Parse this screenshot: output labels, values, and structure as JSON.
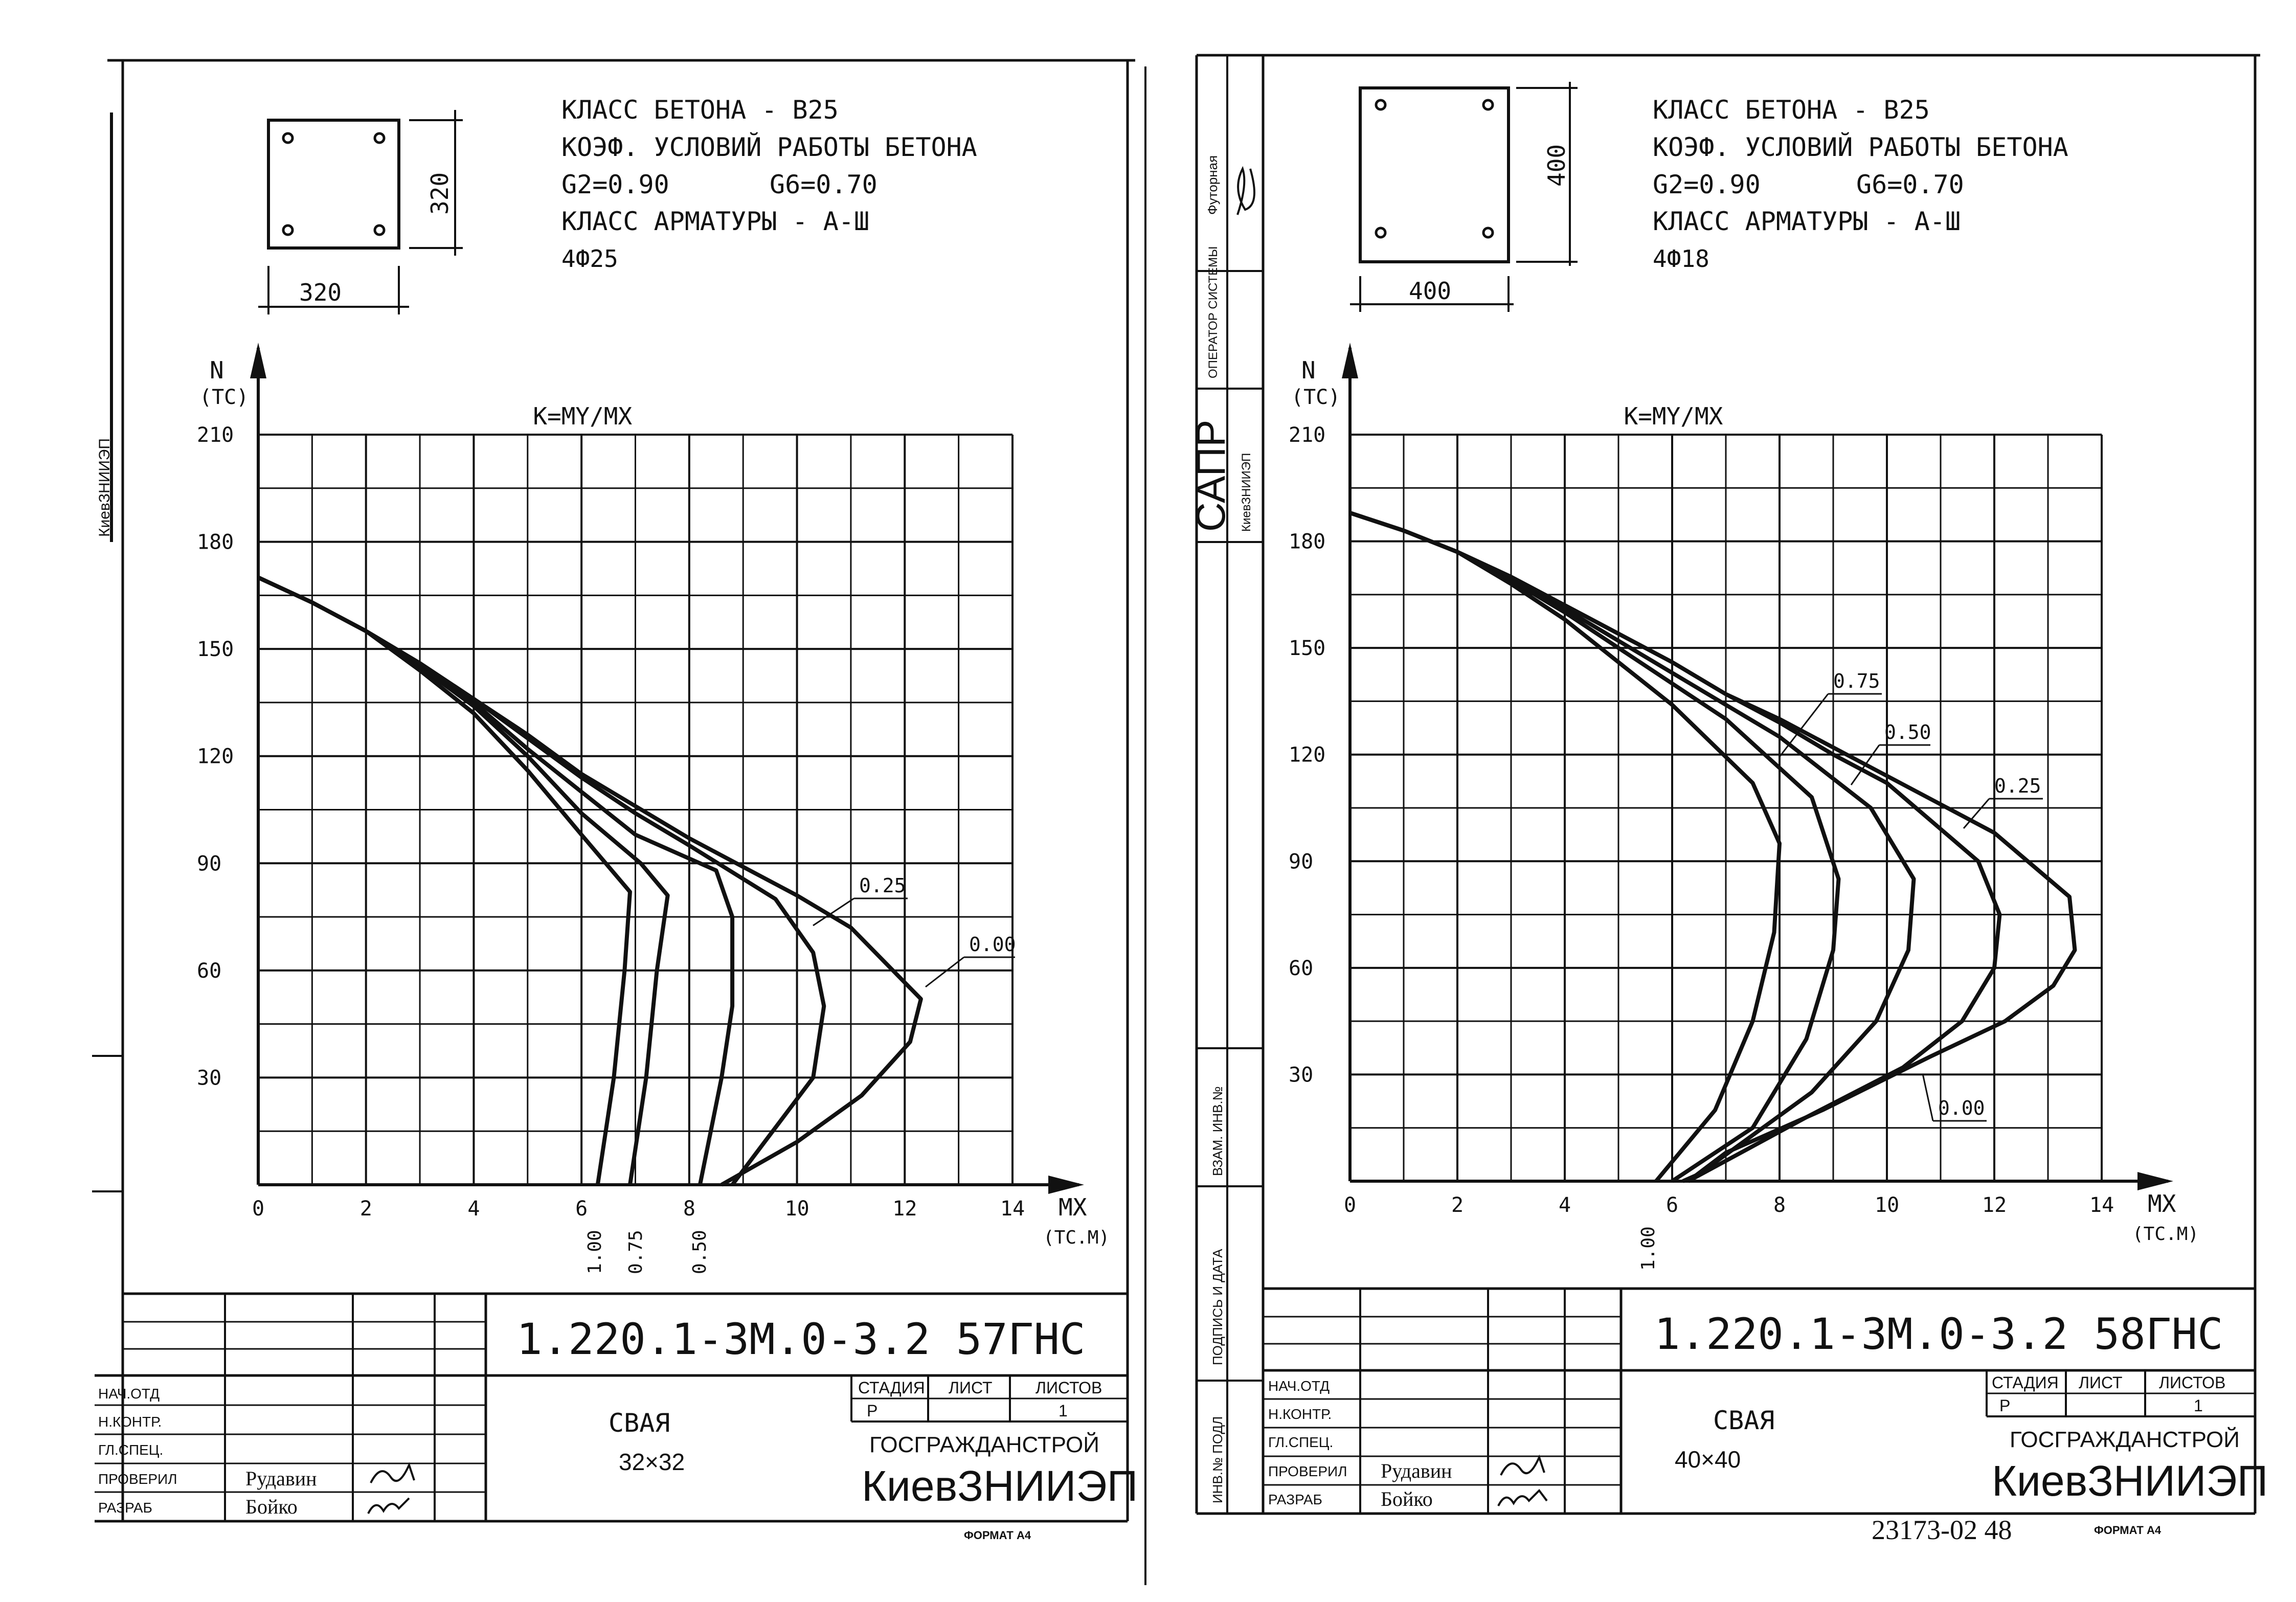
{
  "sheets": [
    {
      "specs": {
        "line1": "КЛАСС БЕТОНА - В25",
        "line2": "КОЭФ. УСЛОВИЙ РАБОТЫ БЕТОНА",
        "line3a": "G2=0.90",
        "line3b": "G6=0.70",
        "line4": "КЛАСС АРМАТУРЫ - А-Ш",
        "line5": "4Ф25"
      },
      "section_dim_w": "320",
      "section_dim_h": "320",
      "y_axis_label": "N",
      "y_axis_unit": "(ТС)",
      "x_axis_label": "MX",
      "x_axis_unit": "(ТС.М)",
      "k_label": "K=MY/MX",
      "y_ticks": [
        "210",
        "180",
        "150",
        "120",
        "90",
        "60",
        "30"
      ],
      "x_ticks": [
        "0",
        "2",
        "4",
        "6",
        "8",
        "10",
        "12",
        "14"
      ],
      "curve_labels": [
        "0.25",
        "0.00"
      ],
      "bottom_labels": [
        "1.00",
        "0.75",
        "0.50"
      ],
      "drawing_number": "1.220.1-3М.0-3.2 57ГНС",
      "item_name": "СВАЯ",
      "item_size": "32×32",
      "org1": "ГОСГРАЖДАНСТРОЙ",
      "org2": "КиевЗНИИЭП",
      "stage_headers": [
        "СТАДИЯ",
        "ЛИСТ",
        "ЛИСТОВ"
      ],
      "stage_values": [
        "Р",
        "",
        "1"
      ],
      "roles": [
        "НАЧ.ОТД",
        "Н.КОНТР.",
        "ГЛ.СПЕЦ.",
        "ПРОВЕРИЛ",
        "РАЗРАБ"
      ],
      "names": [
        "",
        "",
        "",
        "Рудавин",
        "Бойко"
      ],
      "format": "ФОРМАТ А4",
      "chart_data": {
        "type": "line",
        "xlabel": "MX (ТС.М)",
        "ylabel": "N (ТС)",
        "xlim": [
          0,
          14
        ],
        "ylim": [
          0,
          210
        ],
        "grid": true,
        "series": [
          {
            "name": "1.00",
            "points": [
              [
                0,
                170
              ],
              [
                1,
                163
              ],
              [
                2,
                155
              ],
              [
                3,
                144
              ],
              [
                4,
                132
              ],
              [
                5,
                116
              ],
              [
                6,
                98
              ],
              [
                6.9,
                82
              ],
              [
                6.8,
                60
              ],
              [
                6.6,
                30
              ],
              [
                6.3,
                0
              ]
            ]
          },
          {
            "name": "0.75",
            "points": [
              [
                0,
                170
              ],
              [
                1,
                163
              ],
              [
                2,
                155
              ],
              [
                3,
                145
              ],
              [
                4,
                134
              ],
              [
                5,
                120
              ],
              [
                6,
                104
              ],
              [
                7.1,
                90
              ],
              [
                7.6,
                81
              ],
              [
                7.4,
                60
              ],
              [
                7.2,
                30
              ],
              [
                6.9,
                0
              ]
            ]
          },
          {
            "name": "0.50",
            "points": [
              [
                0,
                170
              ],
              [
                1,
                163
              ],
              [
                2,
                155
              ],
              [
                3,
                145
              ],
              [
                4,
                135
              ],
              [
                5,
                122
              ],
              [
                6,
                110
              ],
              [
                7,
                98
              ],
              [
                8.5,
                88
              ],
              [
                8.8,
                75
              ],
              [
                8.8,
                50
              ],
              [
                8.6,
                30
              ],
              [
                8.2,
                0
              ]
            ]
          },
          {
            "name": "0.25",
            "points": [
              [
                0,
                170
              ],
              [
                1,
                163
              ],
              [
                2,
                155
              ],
              [
                3,
                146
              ],
              [
                4,
                136
              ],
              [
                5,
                125
              ],
              [
                6,
                114
              ],
              [
                7,
                104
              ],
              [
                8,
                95
              ],
              [
                9.6,
                80
              ],
              [
                10.3,
                65
              ],
              [
                10.5,
                50
              ],
              [
                10.3,
                30
              ],
              [
                9.5,
                14
              ],
              [
                8.8,
                0
              ]
            ]
          },
          {
            "name": "0.00",
            "points": [
              [
                0,
                170
              ],
              [
                1,
                163
              ],
              [
                2,
                155
              ],
              [
                3,
                146
              ],
              [
                4,
                136
              ],
              [
                5,
                126
              ],
              [
                6,
                115
              ],
              [
                7,
                106
              ],
              [
                8,
                97
              ],
              [
                9,
                89
              ],
              [
                10,
                81
              ],
              [
                11,
                72
              ],
              [
                12.3,
                52
              ],
              [
                12.1,
                40
              ],
              [
                11.2,
                25
              ],
              [
                10.0,
                12
              ],
              [
                8.6,
                0
              ]
            ]
          }
        ]
      }
    },
    {
      "specs": {
        "line1": "КЛАСС БЕТОНА - В25",
        "line2": "КОЭФ. УСЛОВИЙ РАБОТЫ БЕТОНА",
        "line3a": "G2=0.90",
        "line3b": "G6=0.70",
        "line4": "КЛАСС АРМАТУРЫ - А-Ш",
        "line5": "4Ф18"
      },
      "section_dim_w": "400",
      "section_dim_h": "400",
      "y_axis_label": "N",
      "y_axis_unit": "(ТС)",
      "x_axis_label": "MX",
      "x_axis_unit": "(ТС.М)",
      "k_label": "K=MY/MX",
      "y_ticks": [
        "210",
        "180",
        "150",
        "120",
        "90",
        "60",
        "30"
      ],
      "x_ticks": [
        "0",
        "2",
        "4",
        "6",
        "8",
        "10",
        "12",
        "14"
      ],
      "curve_labels": [
        "0.75",
        "0.50",
        "0.25",
        "0.00"
      ],
      "bottom_labels": [
        "1.00"
      ],
      "drawing_number": "1.220.1-3М.0-3.2 58ГНС",
      "item_name": "СВАЯ",
      "item_size": "40×40",
      "org1": "ГОСГРАЖДАНСТРОЙ",
      "org2": "КиевЗНИИЭП",
      "stage_headers": [
        "СТАДИЯ",
        "ЛИСТ",
        "ЛИСТОВ"
      ],
      "stage_values": [
        "Р",
        "",
        "1"
      ],
      "roles": [
        "НАЧ.ОТД",
        "Н.КОНТР.",
        "ГЛ.СПЕЦ.",
        "ПРОВЕРИЛ",
        "РАЗРАБ"
      ],
      "names": [
        "",
        "",
        "",
        "Рудавин",
        "Бойко"
      ],
      "format": "ФОРМАТ А4",
      "archive_number": "23173-02 48",
      "chart_data": {
        "type": "line",
        "xlabel": "MX (ТС.М)",
        "ylabel": "N (ТС)",
        "xlim": [
          0,
          14
        ],
        "ylim": [
          0,
          210
        ],
        "grid": true,
        "series": [
          {
            "name": "1.00",
            "points": [
              [
                0,
                188
              ],
              [
                1,
                183
              ],
              [
                2,
                177
              ],
              [
                3,
                168
              ],
              [
                4,
                158
              ],
              [
                5,
                146
              ],
              [
                6,
                134
              ],
              [
                7.5,
                112
              ],
              [
                8,
                95
              ],
              [
                7.9,
                70
              ],
              [
                7.5,
                45
              ],
              [
                6.8,
                20
              ],
              [
                5.7,
                0
              ]
            ]
          },
          {
            "name": "0.75",
            "points": [
              [
                0,
                188
              ],
              [
                1,
                183
              ],
              [
                2,
                177
              ],
              [
                3,
                169
              ],
              [
                4,
                160
              ],
              [
                5,
                150
              ],
              [
                6,
                140
              ],
              [
                7,
                130
              ],
              [
                8.6,
                108
              ],
              [
                9.1,
                85
              ],
              [
                9.0,
                65
              ],
              [
                8.5,
                40
              ],
              [
                7.5,
                15
              ],
              [
                6.0,
                0
              ]
            ]
          },
          {
            "name": "0.50",
            "points": [
              [
                0,
                188
              ],
              [
                1,
                183
              ],
              [
                2,
                177
              ],
              [
                3,
                169
              ],
              [
                4,
                161
              ],
              [
                5,
                152
              ],
              [
                6,
                143
              ],
              [
                7,
                134
              ],
              [
                8,
                125
              ],
              [
                9.7,
                105
              ],
              [
                10.5,
                85
              ],
              [
                10.4,
                65
              ],
              [
                9.8,
                45
              ],
              [
                8.6,
                25
              ],
              [
                6.5,
                2
              ],
              [
                6.2,
                0
              ]
            ]
          },
          {
            "name": "0.25",
            "points": [
              [
                0,
                188
              ],
              [
                1,
                183
              ],
              [
                2,
                177
              ],
              [
                3,
                170
              ],
              [
                4,
                162
              ],
              [
                5,
                154
              ],
              [
                6,
                146
              ],
              [
                7,
                137
              ],
              [
                8,
                129
              ],
              [
                9,
                120
              ],
              [
                10,
                112
              ],
              [
                11.7,
                90
              ],
              [
                12.1,
                75
              ],
              [
                12.0,
                60
              ],
              [
                11.4,
                45
              ],
              [
                10.3,
                32
              ],
              [
                8.5,
                18
              ],
              [
                6.3,
                0
              ]
            ]
          },
          {
            "name": "0.00",
            "points": [
              [
                0,
                188
              ],
              [
                1,
                183
              ],
              [
                2,
                177
              ],
              [
                3,
                170
              ],
              [
                4,
                162
              ],
              [
                5,
                154
              ],
              [
                6,
                146
              ],
              [
                7,
                137
              ],
              [
                8,
                130
              ],
              [
                9,
                122
              ],
              [
                10,
                114
              ],
              [
                11,
                106
              ],
              [
                12,
                98
              ],
              [
                13.4,
                80
              ],
              [
                13.5,
                65
              ],
              [
                13.1,
                55
              ],
              [
                12.2,
                45
              ],
              [
                10.8,
                35
              ],
              [
                8.8,
                20
              ],
              [
                7,
                8
              ],
              [
                6.3,
                0
              ]
            ]
          }
        ]
      }
    }
  ],
  "stamps": {
    "s2_stamp1": "Футорная",
    "s2_stamp2": "ОПЕРАТОР СИСТЕМЫ",
    "s2_stamp3": "САПР",
    "s2_stamp4": "КиевЗНИИЭП",
    "s2_stamp5": "ВЗАМ. ИНВ.№",
    "s2_stamp6": "ПОДПИСЬ И ДАТА",
    "s2_stamp7": "ИНВ.№ ПОДЛ",
    "s1_stamp1": "КиевЗНИИЭП"
  }
}
